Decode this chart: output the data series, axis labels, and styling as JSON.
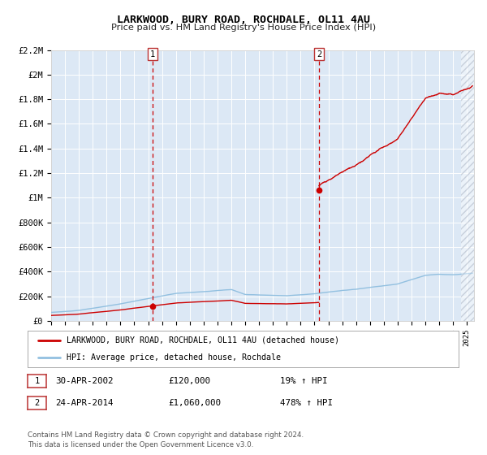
{
  "title": "LARKWOOD, BURY ROAD, ROCHDALE, OL11 4AU",
  "subtitle": "Price paid vs. HM Land Registry's House Price Index (HPI)",
  "ylim": [
    0,
    2200000
  ],
  "xlim_start": 1995.0,
  "xlim_end": 2025.5,
  "yticks": [
    0,
    200000,
    400000,
    600000,
    800000,
    1000000,
    1200000,
    1400000,
    1600000,
    1800000,
    2000000,
    2200000
  ],
  "ytick_labels": [
    "£0",
    "£200K",
    "£400K",
    "£600K",
    "£800K",
    "£1M",
    "£1.2M",
    "£1.4M",
    "£1.6M",
    "£1.8M",
    "£2M",
    "£2.2M"
  ],
  "hpi_color": "#92c0e0",
  "price_color": "#cc0000",
  "bg_color": "#ffffff",
  "plot_bg_color": "#dce8f5",
  "grid_color": "#ffffff",
  "sale1_x": 2002.33,
  "sale1_y": 120000,
  "sale2_x": 2014.32,
  "sale2_y": 1060000,
  "hatched_region_start": 2024.58,
  "legend_line1": "LARKWOOD, BURY ROAD, ROCHDALE, OL11 4AU (detached house)",
  "legend_line2": "HPI: Average price, detached house, Rochdale",
  "info1_date": "30-APR-2002",
  "info1_price": "£120,000",
  "info1_hpi": "19% ↑ HPI",
  "info2_date": "24-APR-2014",
  "info2_price": "£1,060,000",
  "info2_hpi": "478% ↑ HPI",
  "footnote": "Contains HM Land Registry data © Crown copyright and database right 2024.\nThis data is licensed under the Open Government Licence v3.0."
}
